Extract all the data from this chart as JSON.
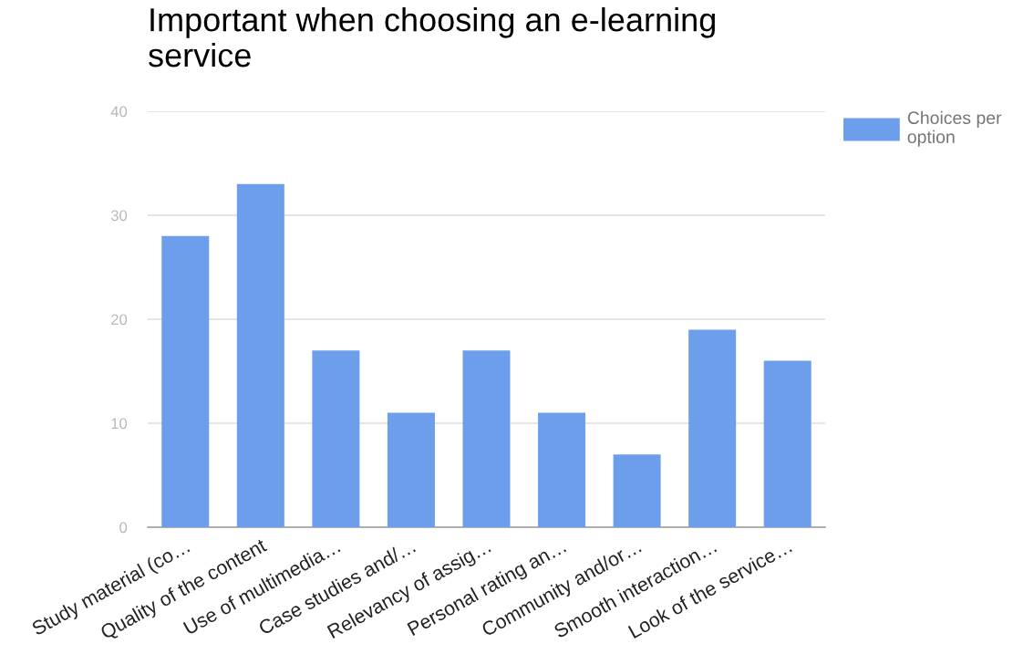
{
  "chart_data": {
    "type": "bar",
    "title": "Important when choosing an e-learning service",
    "categories": [
      "Study material (co…",
      "Quality of the content",
      "Use of multimedia…",
      "Case studies and/…",
      "Relevancy of assig…",
      "Personal rating an…",
      "Community and/or…",
      "Smooth interaction…",
      "Look of the service…"
    ],
    "series": [
      {
        "name": "Choices per option",
        "color": "#6d9eeb",
        "values": [
          28,
          33,
          17,
          11,
          17,
          11,
          7,
          19,
          16
        ]
      }
    ],
    "ylim": [
      0,
      40
    ],
    "yticks": [
      0,
      10,
      20,
      30,
      40
    ],
    "grid": "y",
    "legend": "top right"
  }
}
